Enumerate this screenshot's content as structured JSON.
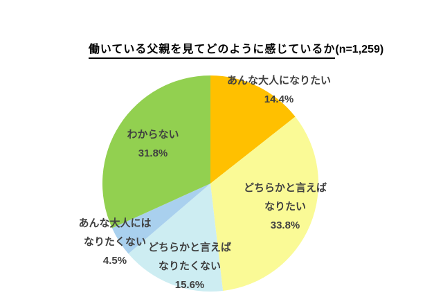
{
  "title": {
    "main": "働いている父親を見てどのように感じているか",
    "sample": "(n=1,259)"
  },
  "chart_data": {
    "type": "pie",
    "title": "働いている父親を見てどのように感じているか(n=1,259)",
    "n": 1259,
    "start_angle": "12 o'clock",
    "direction": "clockwise",
    "background": "#FFFFFF",
    "label_color": "#404040",
    "slices": [
      {
        "label": "あんな大人になりたい",
        "value": 14.4,
        "color": "#FFC000",
        "lines": [
          "あんな大人になりたい",
          "14.4%"
        ]
      },
      {
        "label": "どちらかと言えばなりたい",
        "value": 33.8,
        "color": "#FAFA96",
        "lines": [
          "どちらかと言えば",
          "なりたい",
          "33.8%"
        ]
      },
      {
        "label": "どちらかと言えばなりたくない",
        "value": 15.6,
        "color": "#CDEDF2",
        "lines": [
          "どちらかと言えば",
          "なりたくない",
          "15.6%"
        ]
      },
      {
        "label": "あんな大人にはなりたくない",
        "value": 4.5,
        "color": "#A9D0EE",
        "lines": [
          "あんな大人には",
          "なりたくない",
          "4.5%"
        ]
      },
      {
        "label": "わからない",
        "value": 31.8,
        "color": "#92D050",
        "lines": [
          "わからない",
          "31.8%"
        ]
      }
    ]
  }
}
